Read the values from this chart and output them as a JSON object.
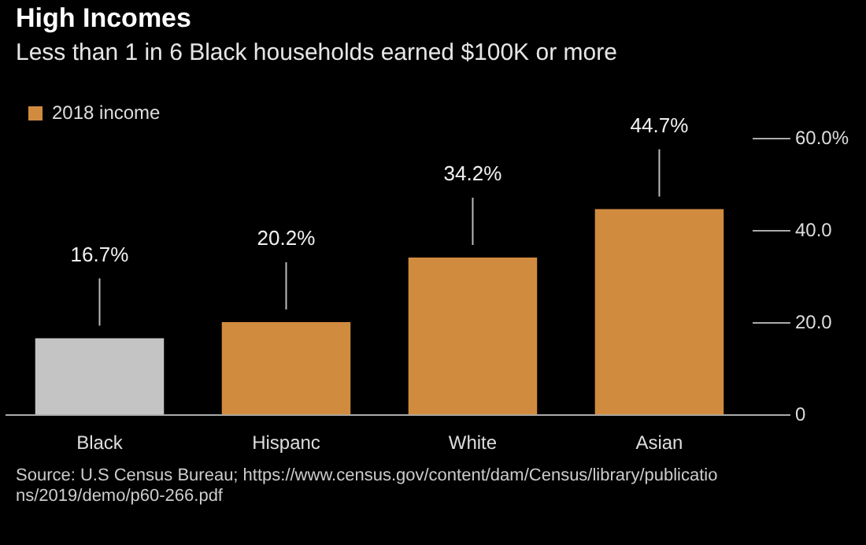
{
  "chart_data": {
    "type": "bar",
    "title": "High Incomes",
    "subtitle": "Less than 1 in 6 Black households earned $100K or more",
    "categories": [
      "Black",
      "Hispanc",
      "White",
      "Asian"
    ],
    "series": [
      {
        "name": "2018 income",
        "color": "#d18b3f",
        "colors": [
          "#c4c4c4",
          "#d18b3f",
          "#d18b3f",
          "#d18b3f"
        ],
        "values": [
          16.7,
          20.2,
          34.2,
          44.7
        ]
      }
    ],
    "value_labels": [
      "16.7%",
      "20.2%",
      "34.2%",
      "44.7%"
    ],
    "ylim": [
      0,
      60
    ],
    "yticks": [
      0,
      {
        "value": 20,
        "label": "20.0"
      },
      {
        "value": 40,
        "label": "40.0"
      },
      {
        "value": 60,
        "label": "60.0%"
      }
    ],
    "grid": false,
    "legend": "top left",
    "annotations": [
      "Source: U.S Census Bureau; https://www.census.gov/content/dam/Census/library/publications/2019/demo/p60-266.pdf"
    ]
  }
}
